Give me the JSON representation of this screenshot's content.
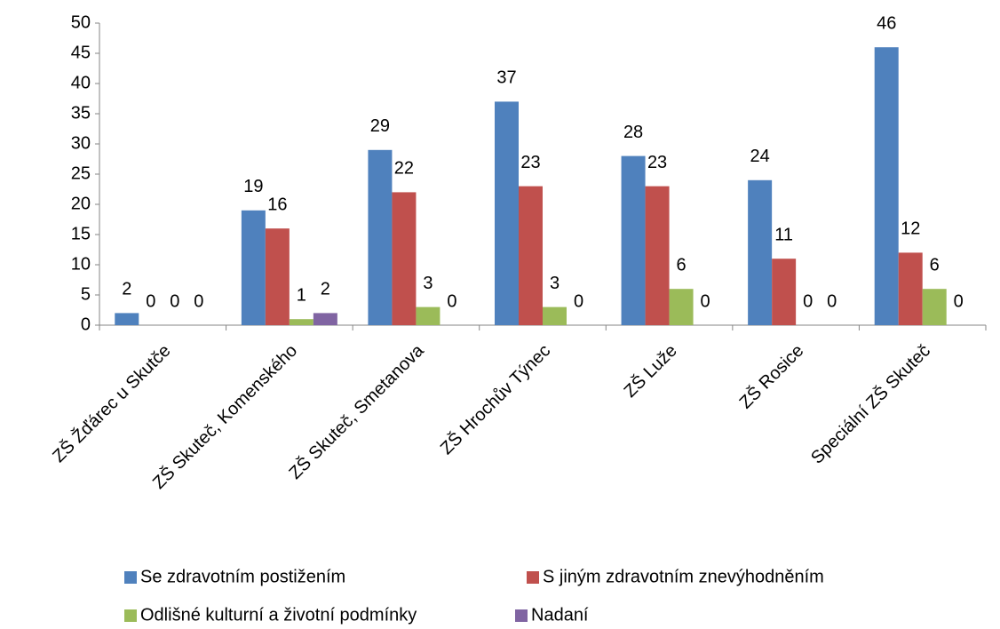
{
  "chart_data": {
    "type": "bar",
    "categories": [
      "ZŠ Žďárec u Skutče",
      "ZŠ Skuteč, Komenského",
      "ZŠ Skuteč, Smetanova",
      "ZŠ Hrochův Týnec",
      "ZŠ Luže",
      "ZŠ Rosice",
      "Speciální ZŠ Skuteč"
    ],
    "series": [
      {
        "name": "Se zdravotním postižením",
        "color": "#4f81bd",
        "values": [
          2,
          19,
          29,
          37,
          28,
          24,
          46
        ]
      },
      {
        "name": "S jiným zdravotním znevýhodněním",
        "color": "#c0504d",
        "values": [
          0,
          16,
          22,
          23,
          23,
          11,
          12
        ]
      },
      {
        "name": "Odlišné kulturní a životní podmínky",
        "color": "#9bbb59",
        "values": [
          0,
          1,
          3,
          3,
          6,
          0,
          6
        ]
      },
      {
        "name": "Nadaní",
        "color": "#8064a2",
        "values": [
          0,
          2,
          0,
          0,
          0,
          0,
          0
        ]
      }
    ],
    "ylim": [
      0,
      50
    ],
    "yticks": [
      0,
      5,
      10,
      15,
      20,
      25,
      30,
      35,
      40,
      45,
      50
    ],
    "grid": false,
    "legend": "bottom"
  }
}
